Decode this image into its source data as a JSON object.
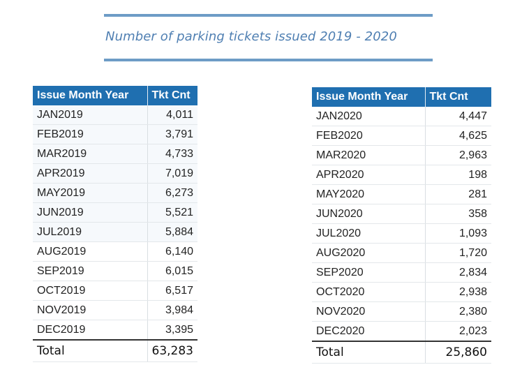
{
  "header": {
    "title": "Number of parking tickets issued 2019 - 2020"
  },
  "colors": {
    "accent_rule": "#6d9cc6",
    "title_text": "#4f7fb2",
    "table_header": "#1f6fb0"
  },
  "table_2019": {
    "columns": [
      "Issue Month Year",
      "Tkt Cnt"
    ],
    "rows": [
      {
        "month": "JAN2019",
        "count": "4,011"
      },
      {
        "month": "FEB2019",
        "count": "3,791"
      },
      {
        "month": "MAR2019",
        "count": "4,733"
      },
      {
        "month": "APR2019",
        "count": "7,019"
      },
      {
        "month": "MAY2019",
        "count": "6,273"
      },
      {
        "month": "JUN2019",
        "count": "5,521"
      },
      {
        "month": "JUL2019",
        "count": "5,884"
      },
      {
        "month": "AUG2019",
        "count": "6,140"
      },
      {
        "month": "SEP2019",
        "count": "6,015"
      },
      {
        "month": "OCT2019",
        "count": "6,517"
      },
      {
        "month": "NOV2019",
        "count": "3,984"
      },
      {
        "month": "DEC2019",
        "count": "3,395"
      }
    ],
    "total_label": "Total",
    "total_value": "63,283"
  },
  "table_2020": {
    "columns": [
      "Issue Month Year",
      "Tkt Cnt"
    ],
    "rows": [
      {
        "month": "JAN2020",
        "count": "4,447"
      },
      {
        "month": "FEB2020",
        "count": "4,625"
      },
      {
        "month": "MAR2020",
        "count": "2,963"
      },
      {
        "month": "APR2020",
        "count": "198"
      },
      {
        "month": "MAY2020",
        "count": "281"
      },
      {
        "month": "JUN2020",
        "count": "358"
      },
      {
        "month": "JUL2020",
        "count": "1,093"
      },
      {
        "month": "AUG2020",
        "count": "1,720"
      },
      {
        "month": "SEP2020",
        "count": "2,834"
      },
      {
        "month": "OCT2020",
        "count": "2,938"
      },
      {
        "month": "NOV2020",
        "count": "2,380"
      },
      {
        "month": "DEC2020",
        "count": "2,023"
      }
    ],
    "total_label": "Total",
    "total_value": "25,860"
  }
}
